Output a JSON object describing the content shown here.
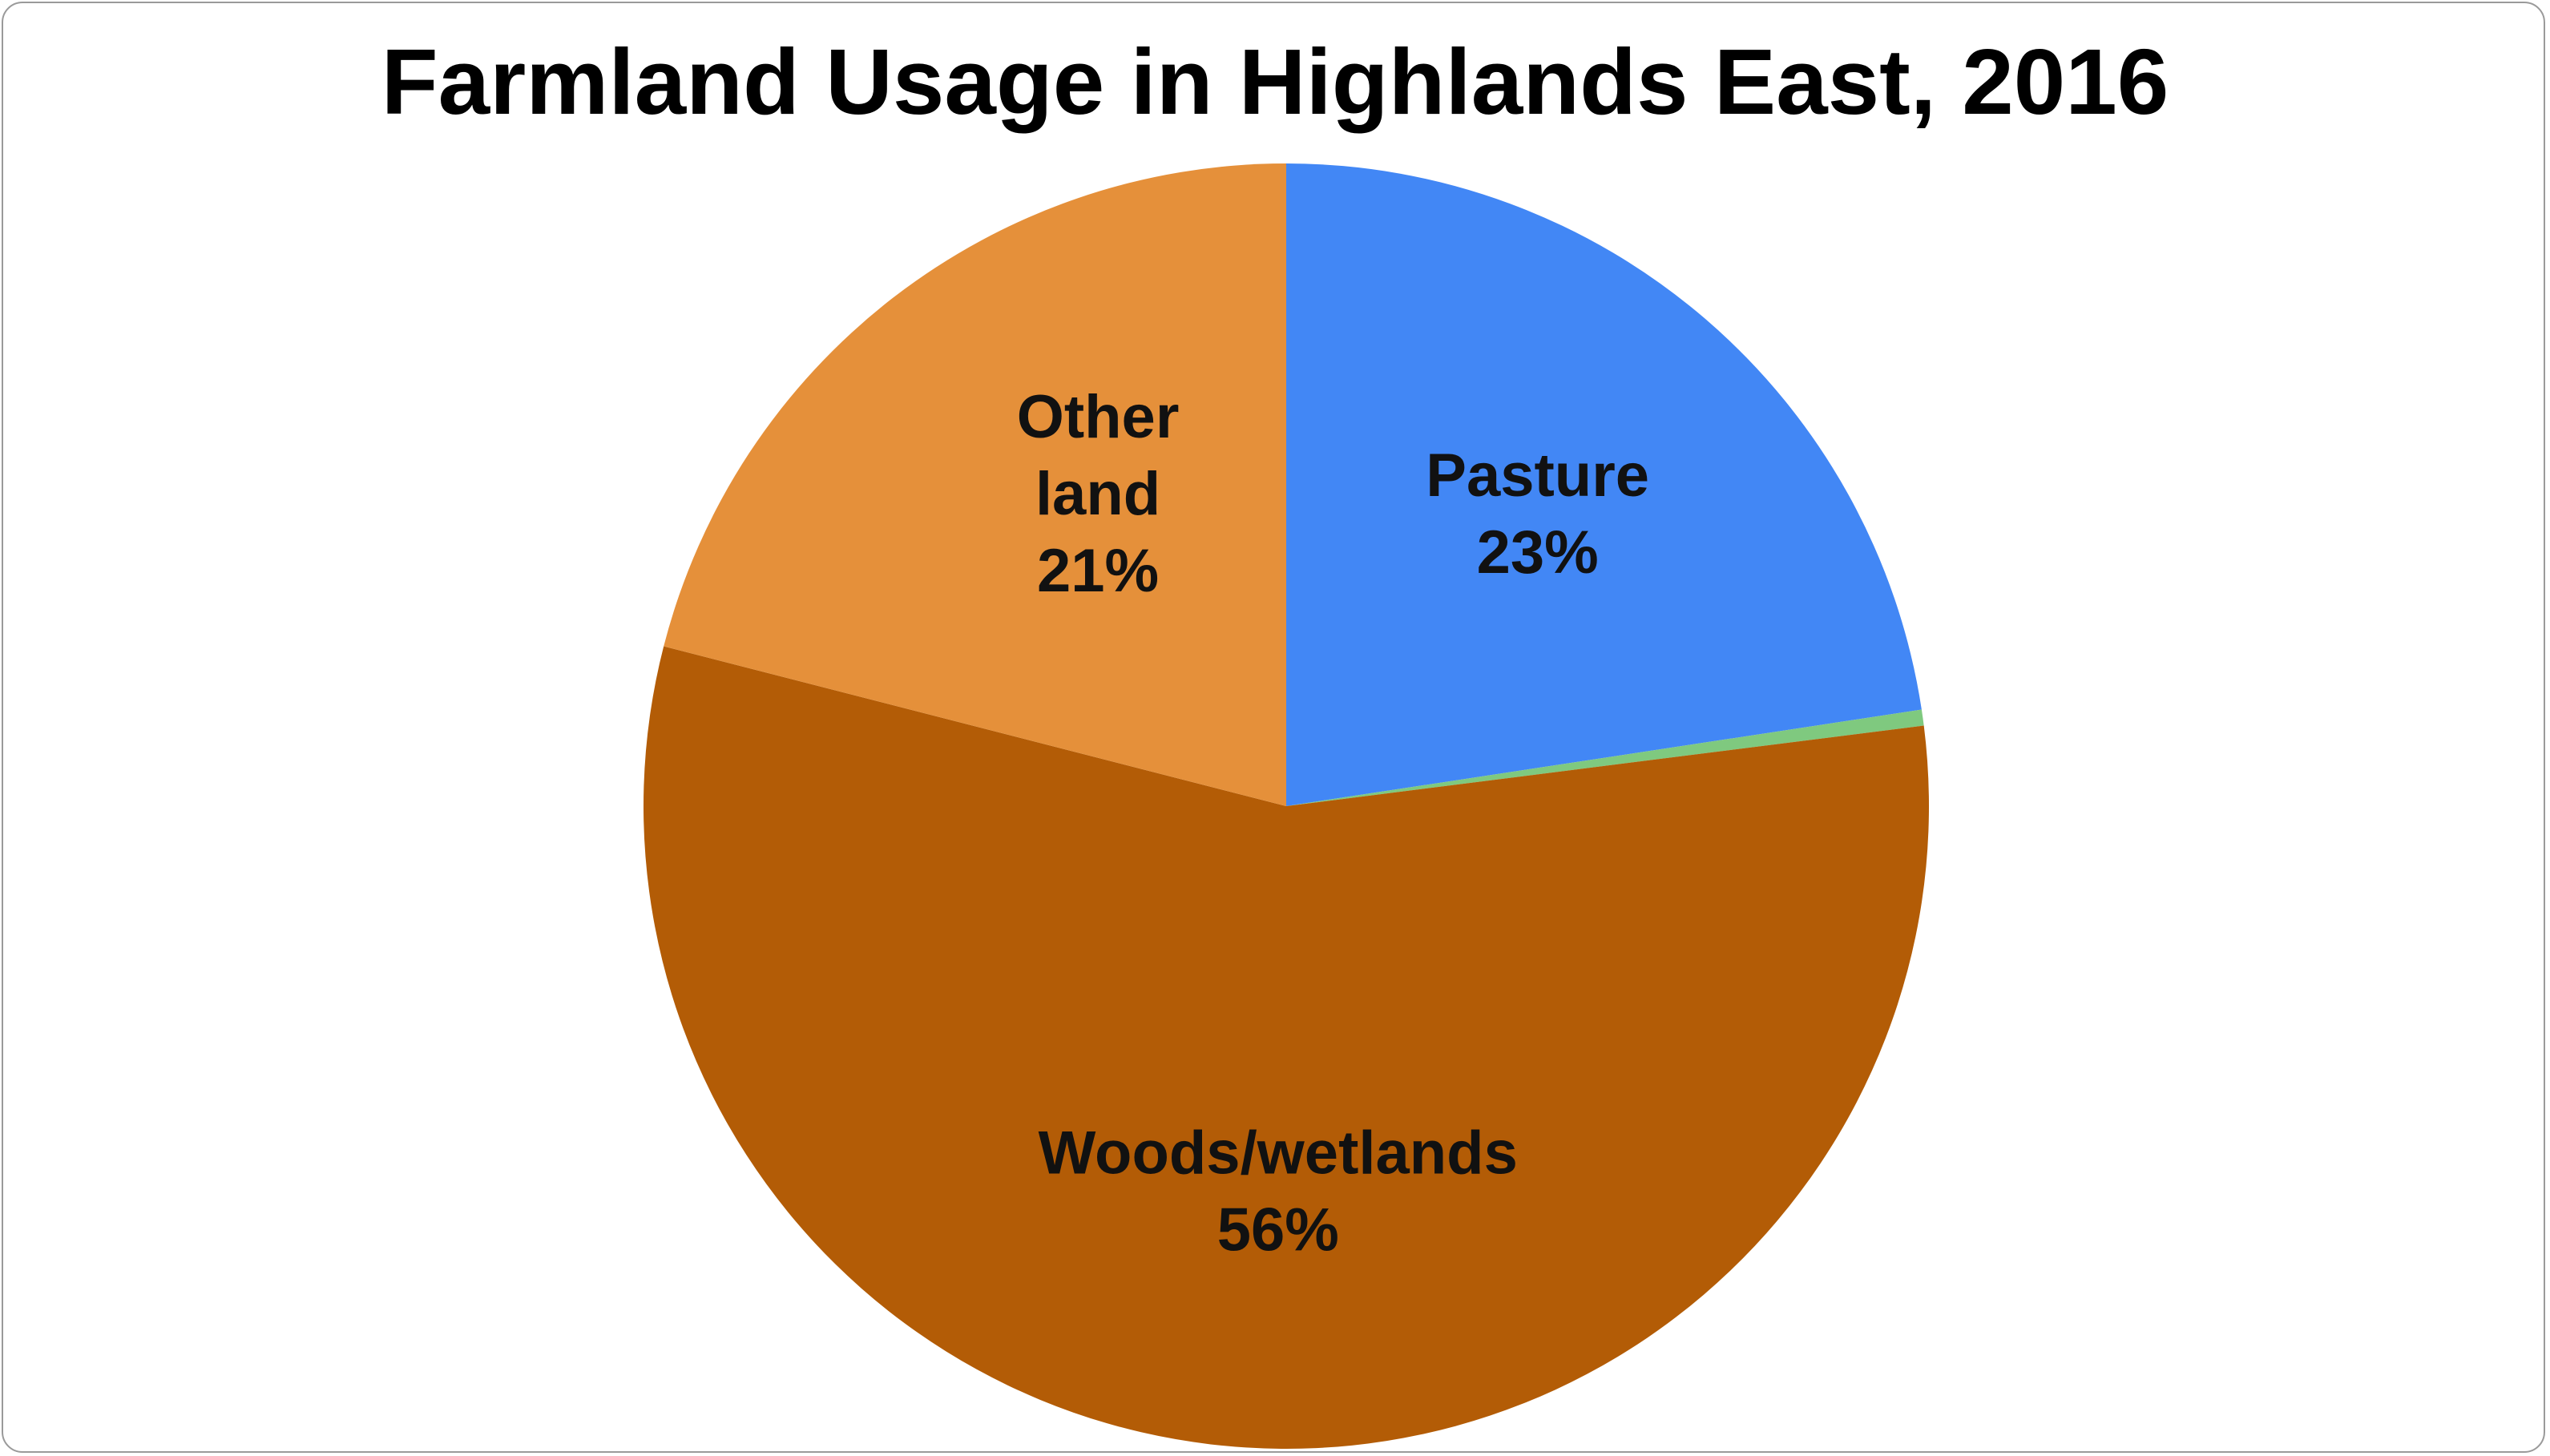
{
  "chart_data": {
    "type": "pie",
    "title": "Farmland Usage in Highlands East, 2016",
    "start_angle_deg": 0,
    "direction": "clockwise",
    "slices": [
      {
        "label": "Pasture",
        "value": 22.6,
        "percent_label": "23%",
        "color": "#4287f5",
        "show_label": true
      },
      {
        "label": "",
        "value": 0.4,
        "percent_label": "",
        "color": "#7fc97f",
        "show_label": false
      },
      {
        "label": "Woods/wetlands",
        "value": 56.0,
        "percent_label": "56%",
        "color": "#b35c06",
        "show_label": true
      },
      {
        "label": "Other land",
        "value": 21.0,
        "percent_label": "21%",
        "color": "#e5903a",
        "show_label": true
      }
    ]
  }
}
